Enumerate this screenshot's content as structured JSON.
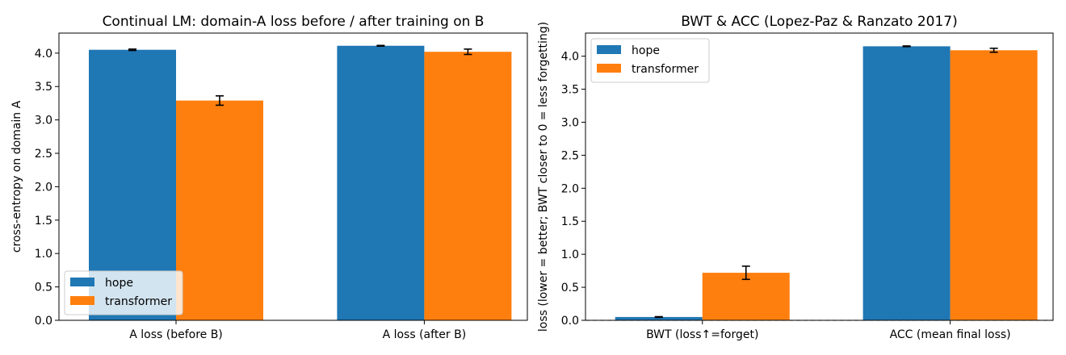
{
  "chart_data": [
    {
      "type": "bar",
      "title": "Continual LM: domain-A loss before / after training on B",
      "xlabel": "",
      "ylabel": "cross-entropy on domain A",
      "categories": [
        "A loss (before B)",
        "A loss (after B)"
      ],
      "ylim": [
        0,
        4.3
      ],
      "yticks": [
        0.0,
        0.5,
        1.0,
        1.5,
        2.0,
        2.5,
        3.0,
        3.5,
        4.0
      ],
      "ytick_labels": [
        "0.0",
        "0.5",
        "1.0",
        "1.5",
        "2.0",
        "2.5",
        "3.0",
        "3.5",
        "4.0"
      ],
      "legend_position": "lower-left",
      "grid": false,
      "series": [
        {
          "name": "hope",
          "color": "#1f77b4",
          "values": [
            4.05,
            4.11
          ],
          "errors": [
            0.01,
            0.005
          ]
        },
        {
          "name": "transformer",
          "color": "#ff7f0e",
          "values": [
            3.29,
            4.02
          ],
          "errors": [
            0.07,
            0.04
          ]
        }
      ]
    },
    {
      "type": "bar",
      "title": "BWT & ACC (Lopez-Paz & Ranzato 2017)",
      "xlabel": "",
      "ylabel": "loss (lower = better; BWT closer to 0 = less forgetting)",
      "categories": [
        "BWT (loss↑=forget)",
        "ACC (mean final loss)"
      ],
      "ylim": [
        0,
        4.35
      ],
      "yticks": [
        0.0,
        0.5,
        1.0,
        1.5,
        2.0,
        2.5,
        3.0,
        3.5,
        4.0
      ],
      "ytick_labels": [
        "0.0",
        "0.5",
        "1.0",
        "1.5",
        "2.0",
        "2.5",
        "3.0",
        "3.5",
        "4.0"
      ],
      "legend_position": "upper-left",
      "grid": false,
      "zero_line": "dashed",
      "series": [
        {
          "name": "hope",
          "color": "#1f77b4",
          "values": [
            0.05,
            4.15
          ],
          "errors": [
            0.005,
            0.005
          ]
        },
        {
          "name": "transformer",
          "color": "#ff7f0e",
          "values": [
            0.72,
            4.09
          ],
          "errors": [
            0.1,
            0.03
          ]
        }
      ]
    }
  ]
}
